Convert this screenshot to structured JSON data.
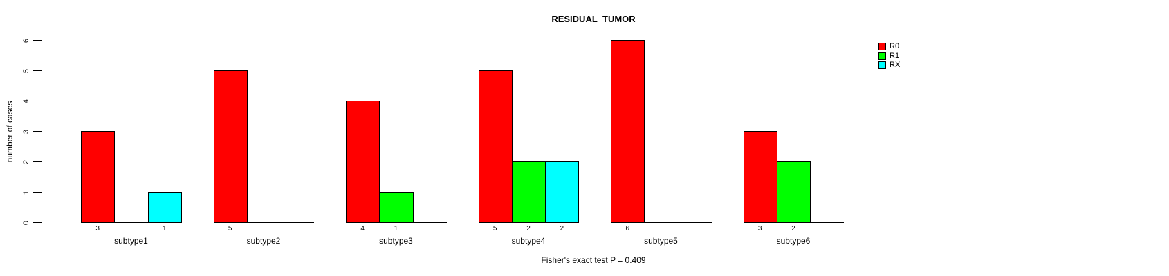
{
  "chart_data": {
    "type": "bar",
    "subtype": "grouped",
    "title": "RESIDUAL_TUMOR",
    "ylabel": "number of cases",
    "xlabel": "",
    "ylim": [
      0,
      6
    ],
    "yticks": [
      0,
      1,
      2,
      3,
      4,
      5,
      6
    ],
    "grid": false,
    "legend_position": "right",
    "bar_value_labels": "shown under nonzero bars",
    "categories": [
      "subtype1",
      "subtype2",
      "subtype3",
      "subtype4",
      "subtype5",
      "subtype6"
    ],
    "series": [
      {
        "name": "R0",
        "color": "#ff0000",
        "values": [
          3,
          5,
          4,
          5,
          6,
          3
        ]
      },
      {
        "name": "R1",
        "color": "#00ff00",
        "values": [
          0,
          0,
          1,
          2,
          0,
          2
        ]
      },
      {
        "name": "RX",
        "color": "#00ffff",
        "values": [
          1,
          0,
          0,
          2,
          0,
          0
        ]
      }
    ],
    "footer": "Fisher's exact test P = 0.409",
    "colors": {
      "axis": "#000000",
      "text": "#000000",
      "background": "#ffffff"
    }
  }
}
